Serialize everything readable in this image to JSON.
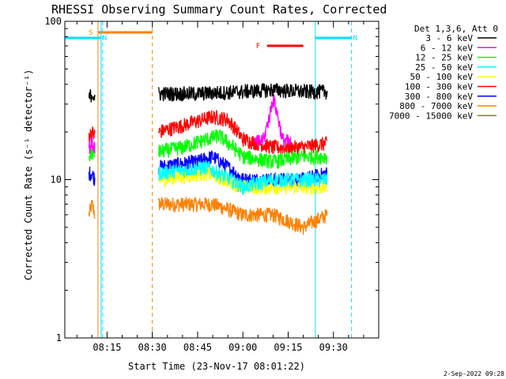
{
  "chart_data": {
    "type": "line",
    "title": "RHESSI Observing Summary Count Rates, Corrected",
    "xlabel": "Start Time (23-Nov-17 08:01:22)",
    "ylabel": "Corrected Count Rate (s⁻¹ detector⁻¹)",
    "yscale": "log",
    "ylim": [
      1,
      100
    ],
    "xlim": [
      "08:01",
      "09:45"
    ],
    "x_ticks": [
      "08:15",
      "08:30",
      "08:45",
      "09:00",
      "09:15",
      "09:30"
    ],
    "y_ticks": [
      "1",
      "10",
      "100"
    ],
    "legend": {
      "placement": "outside-right",
      "header": "Det 1,3,6, Att 0",
      "entries": [
        {
          "label": "3 - 6 keV",
          "color": "#000000"
        },
        {
          "label": "6 - 12 keV",
          "color": "#ff00ff"
        },
        {
          "label": "12 - 25 keV",
          "color": "#00ff00"
        },
        {
          "label": "25 - 50 keV",
          "color": "#00ffff"
        },
        {
          "label": "50 - 100 keV",
          "color": "#ffff00"
        },
        {
          "label": "100 - 300 keV",
          "color": "#ff0000"
        },
        {
          "label": "300 - 800 keV",
          "color": "#0000ff"
        },
        {
          "label": "800 - 7000 keV",
          "color": "#ff8000"
        },
        {
          "label": "7000 - 15000 keV",
          "color": "#808000"
        }
      ]
    },
    "flags": [
      {
        "label": "S",
        "color": "#ff8000",
        "start": "08:12",
        "end": "08:30"
      },
      {
        "label": "N",
        "color": "#00e0ff",
        "start": "08:01",
        "end": "08:13"
      },
      {
        "label": "N",
        "color": "#00e0ff",
        "start": "09:24",
        "end": "09:36"
      },
      {
        "label": "F",
        "color": "#ff0000",
        "start": "09:08",
        "end": "09:20"
      }
    ],
    "series": [
      {
        "name": "3 - 6 keV",
        "color": "#000000",
        "segments": [
          {
            "x": [
              "08:09",
              "08:10",
              "08:11"
            ],
            "y": [
              33,
              35,
              33
            ]
          },
          {
            "x": [
              "08:32",
              "08:45",
              "09:00",
              "09:10",
              "09:20",
              "09:28"
            ],
            "y": [
              35,
              35,
              36,
              37,
              36,
              36
            ]
          }
        ]
      },
      {
        "name": "6 - 12 keV",
        "color": "#ff00ff",
        "segments": [
          {
            "x": [
              "08:09",
              "08:10",
              "08:11"
            ],
            "y": [
              16,
              17,
              16
            ]
          },
          {
            "x": [
              "09:04",
              "09:07",
              "09:09",
              "09:10",
              "09:11",
              "09:13",
              "09:16"
            ],
            "y": [
              17,
              18,
              26,
              33,
              28,
              18,
              17
            ]
          }
        ]
      },
      {
        "name": "12 - 25 keV",
        "color": "#00ff00",
        "segments": [
          {
            "x": [
              "08:09",
              "08:10",
              "08:11"
            ],
            "y": [
              14,
              15,
              14
            ]
          },
          {
            "x": [
              "08:32",
              "08:40",
              "08:48",
              "08:52",
              "09:00",
              "09:10",
              "09:20",
              "09:28"
            ],
            "y": [
              15,
              16,
              18,
              19,
              14,
              13,
              14,
              14
            ]
          }
        ]
      },
      {
        "name": "25 - 50 keV",
        "color": "#00ffff",
        "segments": [
          {
            "x": [
              "08:32",
              "08:48",
              "09:00",
              "09:10",
              "09:20",
              "09:28"
            ],
            "y": [
              11,
              12,
              9,
              10,
              10,
              10
            ]
          }
        ]
      },
      {
        "name": "50 - 100 keV",
        "color": "#ffff00",
        "segments": [
          {
            "x": [
              "08:32",
              "08:48",
              "09:00",
              "09:10",
              "09:20",
              "09:28"
            ],
            "y": [
              10,
              11,
              9,
              9,
              9,
              9
            ]
          }
        ]
      },
      {
        "name": "100 - 300 keV",
        "color": "#ff0000",
        "segments": [
          {
            "x": [
              "08:09",
              "08:10",
              "08:11"
            ],
            "y": [
              19,
              20,
              19
            ]
          },
          {
            "x": [
              "08:32",
              "08:40",
              "08:50",
              "08:55",
              "09:00",
              "09:10",
              "09:20",
              "09:28"
            ],
            "y": [
              20,
              22,
              25,
              24,
              18,
              16,
              16,
              17
            ]
          }
        ]
      },
      {
        "name": "300 - 800 keV",
        "color": "#0000ff",
        "segments": [
          {
            "x": [
              "08:09",
              "08:10",
              "08:11"
            ],
            "y": [
              11,
              11,
              10
            ]
          },
          {
            "x": [
              "08:32",
              "08:45",
              "08:50",
              "08:55",
              "09:00",
              "09:10",
              "09:20",
              "09:28"
            ],
            "y": [
              12,
              13,
              14,
              12,
              10,
              10,
              10,
              11
            ]
          }
        ]
      },
      {
        "name": "800 - 7000 keV",
        "color": "#ff8000",
        "segments": [
          {
            "x": [
              "08:09",
              "08:10",
              "08:11"
            ],
            "y": [
              6,
              7,
              6
            ]
          },
          {
            "x": [
              "08:32",
              "08:40",
              "08:50",
              "09:00",
              "09:10",
              "09:20",
              "09:28"
            ],
            "y": [
              7,
              7,
              7,
              6,
              6,
              5,
              6
            ]
          }
        ]
      },
      {
        "name": "7000 - 15000 keV",
        "color": "#808000",
        "segments": []
      }
    ]
  },
  "footer_date": "2-Sep-2022 09:28"
}
